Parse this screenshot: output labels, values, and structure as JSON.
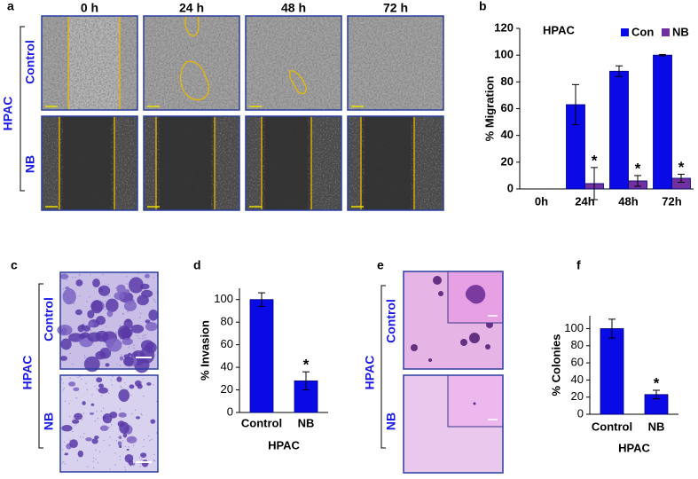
{
  "panel_a": {
    "label": "a",
    "columns": [
      "0 h",
      "24 h",
      "48 h",
      "72 h"
    ],
    "rows": [
      "Control",
      "NB"
    ],
    "group": "HPAC"
  },
  "panel_c": {
    "label": "c",
    "rows": [
      "Control",
      "NB"
    ],
    "group": "HPAC"
  },
  "panel_e": {
    "label": "e",
    "rows": [
      "Control",
      "NB"
    ],
    "group": "HPAC"
  },
  "chart_data": [
    {
      "type": "bar",
      "panel_label": "b",
      "title": "HPAC",
      "y_label": "% Migration",
      "categories": [
        "0h",
        "24h",
        "48h",
        "72h"
      ],
      "series": [
        {
          "name": "Con",
          "color": "#0a0ae6",
          "values": [
            null,
            63,
            88,
            100
          ],
          "errors": [
            null,
            15,
            4,
            0.5
          ]
        },
        {
          "name": "NB",
          "color": "#7030a0",
          "values": [
            null,
            4,
            6,
            8
          ],
          "errors": [
            null,
            12,
            4,
            3
          ],
          "annotations": [
            null,
            "*",
            "*",
            "*"
          ]
        }
      ],
      "ylim": [
        0,
        120
      ],
      "yticks": [
        0,
        20,
        40,
        60,
        80,
        100,
        120
      ],
      "legend": "top-right"
    },
    {
      "type": "bar",
      "panel_label": "d",
      "y_label": "% Invasion",
      "x_label": "HPAC",
      "categories": [
        "Control",
        "NB"
      ],
      "values": [
        100,
        28
      ],
      "errors": [
        6,
        8
      ],
      "annotations": [
        null,
        "*"
      ],
      "color": "#0a0ae6",
      "ylim": [
        0,
        110
      ],
      "yticks": [
        0,
        20,
        40,
        60,
        80,
        100
      ]
    },
    {
      "type": "bar",
      "panel_label": "f",
      "y_label": "% Colonies",
      "x_label": "HPAC",
      "categories": [
        "Control",
        "NB"
      ],
      "values": [
        100,
        23
      ],
      "errors": [
        11,
        5
      ],
      "annotations": [
        null,
        "*"
      ],
      "color": "#0a0ae6",
      "ylim": [
        0,
        115
      ],
      "yticks": [
        0,
        20,
        40,
        60,
        80,
        100
      ]
    }
  ]
}
